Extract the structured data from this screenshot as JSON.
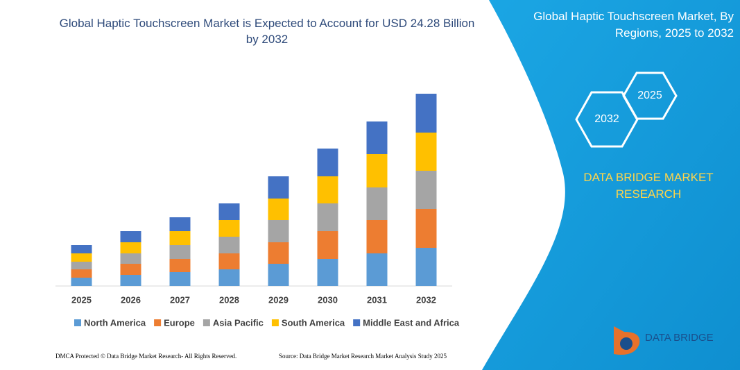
{
  "chart_data": {
    "type": "stacked-bar",
    "title": "Global Haptic Touchscreen Market is Expected to Account for USD 24.28 Billion by 2032",
    "categories": [
      "2025",
      "2026",
      "2027",
      "2028",
      "2029",
      "2030",
      "2031",
      "2032"
    ],
    "series": [
      {
        "name": "North America",
        "color": "#5b9bd5",
        "values": [
          12,
          16,
          20,
          24,
          32,
          39,
          47,
          55
        ]
      },
      {
        "name": "Europe",
        "color": "#ed7d31",
        "values": [
          12,
          16,
          19,
          23,
          31,
          40,
          48,
          56
        ]
      },
      {
        "name": "Asia Pacific",
        "color": "#a5a5a5",
        "values": [
          11,
          15,
          20,
          24,
          32,
          40,
          47,
          55
        ]
      },
      {
        "name": "South America",
        "color": "#ffc000",
        "values": [
          12,
          16,
          20,
          24,
          31,
          39,
          48,
          55
        ]
      },
      {
        "name": "Middle East and Africa",
        "color": "#4472c4",
        "values": [
          12,
          16,
          20,
          24,
          32,
          40,
          47,
          56
        ]
      }
    ],
    "ylim": [
      0,
      300
    ]
  },
  "panel": {
    "title": "Global Haptic Touchscreen Market, By Regions, 2025 to 2032",
    "hex_start": "2025",
    "hex_end": "2032",
    "brand": "DATA BRIDGE MARKET RESEARCH",
    "logo": "DATA BRIDGE"
  },
  "footer": {
    "left": "DMCA Protected © Data Bridge Market Research- All Rights Reserved.",
    "right": "Source: Data Bridge Market Research Market Analysis Study 2025"
  }
}
